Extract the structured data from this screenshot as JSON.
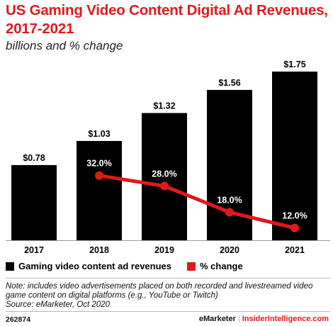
{
  "title": "US Gaming Video Content Digital Ad Revenues, 2017-2021",
  "subtitle": "billions and % change",
  "chart_data": {
    "type": "bar",
    "categories": [
      "2017",
      "2018",
      "2019",
      "2020",
      "2021"
    ],
    "series": [
      {
        "name": "Gaming video content ad revenues",
        "type": "bar",
        "values": [
          0.78,
          1.03,
          1.32,
          1.56,
          1.75
        ],
        "labels": [
          "$0.78",
          "$1.03",
          "$1.32",
          "$1.56",
          "$1.75"
        ],
        "color": "#000000"
      },
      {
        "name": "% change",
        "type": "line",
        "values": [
          null,
          32.0,
          28.0,
          18.0,
          12.0
        ],
        "labels": [
          "",
          "32.0%",
          "28.0%",
          "18.0%",
          "12.0%"
        ],
        "color": "#e0191b"
      }
    ],
    "legend_position": "bottom-left",
    "grid": false
  },
  "note": "Note: includes video advertisements placed on both recorded and livestreamed video game content on digital platforms (e.g., YouTube or Twitch)",
  "source": "Source: eMarketer, Oct 2020",
  "footer": {
    "chart_id": "262874",
    "brand": "eMarketer",
    "separator": "|",
    "site": "InsiderIntelligence.com"
  }
}
